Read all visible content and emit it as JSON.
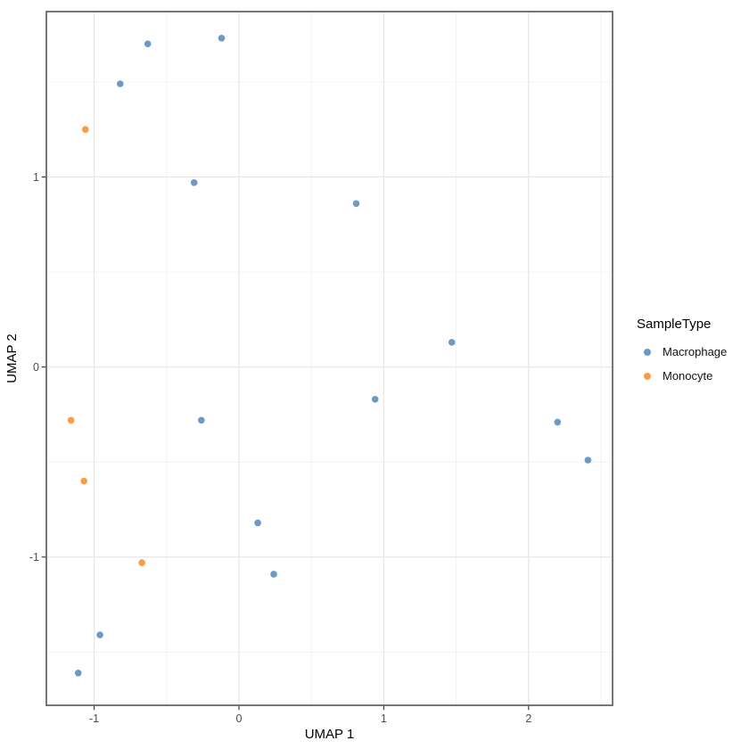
{
  "chart_data": {
    "type": "scatter",
    "title": "",
    "xlabel": "UMAP 1",
    "ylabel": "UMAP 2",
    "xlim": [
      -1.33,
      2.58
    ],
    "ylim": [
      -1.78,
      1.87
    ],
    "x_major_ticks": [
      -1,
      0,
      1,
      2
    ],
    "x_tick_labels": [
      "-1",
      "0",
      "1",
      "2"
    ],
    "x_minor_ticks": [
      -0.5,
      0.5,
      1.5,
      2.5
    ],
    "y_major_ticks": [
      -1,
      0,
      1
    ],
    "y_tick_labels": [
      "-1",
      "0",
      "1"
    ],
    "y_minor_ticks": [
      -1.5,
      -0.5,
      0.5,
      1.5
    ],
    "grid": "on",
    "legend_position": "right",
    "legend_title": "SampleType",
    "series": [
      {
        "name": "Macrophage",
        "color": "#6C99C8",
        "points": [
          [
            -0.63,
            1.7
          ],
          [
            -0.12,
            1.73
          ],
          [
            -0.82,
            1.49
          ],
          [
            -0.31,
            0.97
          ],
          [
            0.81,
            0.86
          ],
          [
            1.47,
            0.13
          ],
          [
            0.94,
            -0.17
          ],
          [
            -0.26,
            -0.28
          ],
          [
            2.2,
            -0.29
          ],
          [
            2.41,
            -0.49
          ],
          [
            0.13,
            -0.82
          ],
          [
            0.24,
            -1.09
          ],
          [
            -0.96,
            -1.41
          ],
          [
            -1.11,
            -1.61
          ]
        ]
      },
      {
        "name": "Monocyte",
        "color": "#F99C43",
        "points": [
          [
            -1.06,
            1.25
          ],
          [
            -1.16,
            -0.28
          ],
          [
            -1.07,
            -0.6
          ],
          [
            -0.67,
            -1.03
          ]
        ]
      }
    ]
  },
  "style": {
    "background": "#FFFFFF",
    "panel_background": "#FFFFFF",
    "panel_border_color": "#555555",
    "grid_major_color": "#E7E7E7",
    "grid_minor_color": "#F1F1F1",
    "tick_mark_color": "#333333",
    "tick_label_color": "#4D4D4D",
    "axis_title_color": "#000000",
    "point_radius": 3.8
  }
}
